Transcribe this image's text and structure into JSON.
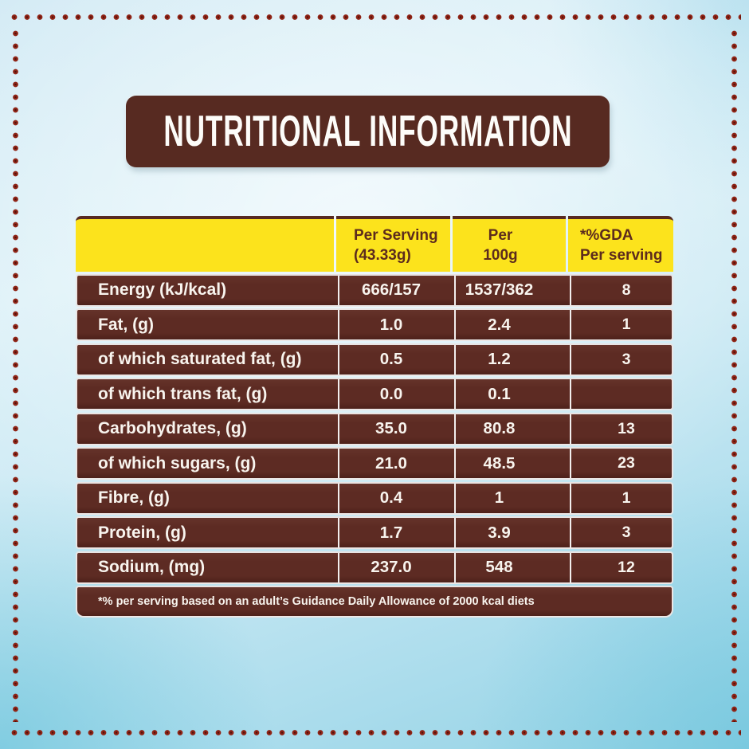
{
  "colors": {
    "banner_brown": "#572a21",
    "row_brown": "#5d2b23",
    "header_yellow": "#fce31c",
    "header_text_brown": "#5c2b1d",
    "dot_red": "#8e2315",
    "background_blue": "#cdeaf4",
    "value_text": "#f8f4ee"
  },
  "banner": {
    "title": "NUTRITIONAL INFORMATION"
  },
  "table": {
    "header": {
      "col1": "",
      "col2": [
        "Per Serving",
        "(43.33g)"
      ],
      "col3": [
        "Per",
        "100g"
      ],
      "col4": [
        "*%GDA",
        "Per serving"
      ]
    },
    "rows": [
      {
        "label": "Energy (kJ/kcal)",
        "per_serving": "666/157",
        "per_100g": "1537/362",
        "gda": "8"
      },
      {
        "label": "Fat, (g)",
        "per_serving": "1.0",
        "per_100g": "2.4",
        "gda": "1"
      },
      {
        "label": "of which saturated fat, (g)",
        "per_serving": "0.5",
        "per_100g": "1.2",
        "gda": "3"
      },
      {
        "label": "of which trans fat, (g)",
        "per_serving": "0.0",
        "per_100g": "0.1",
        "gda": ""
      },
      {
        "label": "Carbohydrates, (g)",
        "per_serving": "35.0",
        "per_100g": "80.8",
        "gda": "13"
      },
      {
        "label": "of which sugars, (g)",
        "per_serving": "21.0",
        "per_100g": "48.5",
        "gda": "23"
      },
      {
        "label": "Fibre, (g)",
        "per_serving": "0.4",
        "per_100g": "1",
        "gda": "1"
      },
      {
        "label": "Protein, (g)",
        "per_serving": "1.7",
        "per_100g": "3.9",
        "gda": "3"
      },
      {
        "label": "Sodium, (mg)",
        "per_serving": "237.0",
        "per_100g": "548",
        "gda": "12"
      }
    ],
    "footnote": "*% per serving based on an adult’s Guidance Daily Allowance of 2000 kcal diets"
  }
}
